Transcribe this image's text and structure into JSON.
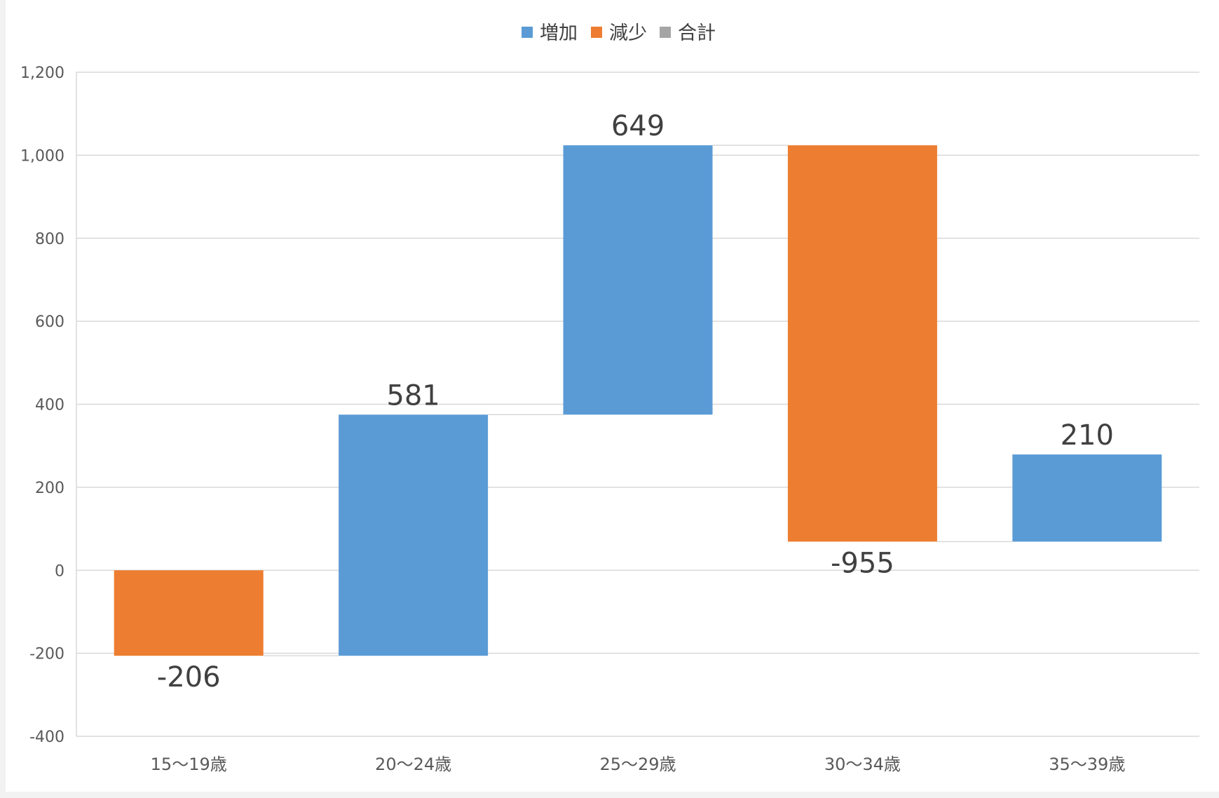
{
  "chart_data": {
    "type": "waterfall",
    "legend": [
      {
        "label": "増加",
        "color": "#5b9bd5"
      },
      {
        "label": "減少",
        "color": "#ed7d31"
      },
      {
        "label": "合計",
        "color": "#a5a5a5"
      }
    ],
    "legend_position": "top",
    "categories": [
      "15〜19歳",
      "20〜24歳",
      "25〜29歳",
      "30〜34歳",
      "35〜39歳"
    ],
    "values": [
      -206,
      581,
      649,
      -955,
      210
    ],
    "value_labels": [
      "-206",
      "581",
      "649",
      "-955",
      "210"
    ],
    "y_ticks": [
      "-400",
      "-200",
      "0",
      "200",
      "400",
      "600",
      "800",
      "1,000",
      "1,200"
    ],
    "ylim": [
      -400,
      1200
    ],
    "y_step": 200,
    "grid": true,
    "colors": {
      "increase": "#5b9bd5",
      "decrease": "#ed7d31",
      "total": "#a5a5a5"
    }
  }
}
